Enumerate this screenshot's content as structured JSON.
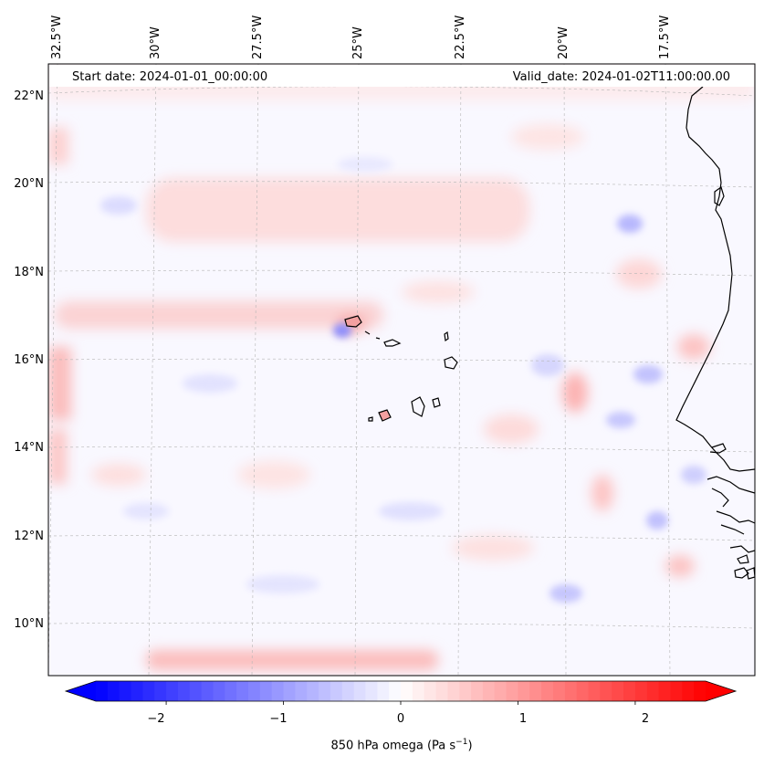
{
  "map": {
    "start_date_label": "Start date: 2024-01-01_00:00:00",
    "valid_date_label": "Valid_date: 2024-01-02T11:00:00.00",
    "lon_labels": [
      "32.5°W",
      "30°W",
      "27.5°W",
      "25°W",
      "22.5°W",
      "20°W",
      "17.5°W"
    ],
    "lat_labels": [
      "22°N",
      "20°N",
      "18°N",
      "16°N",
      "14°N",
      "12°N",
      "10°N"
    ],
    "variable": "850 hPa omega",
    "colormap": "bwr",
    "land_outline": [
      "Cabo Verde islands",
      "West African coastline"
    ]
  },
  "colorbar": {
    "label_main": "850 hPa omega (Pa s",
    "label_exp": "−1",
    "label_end": ")",
    "ticks": [
      "−2",
      "−1",
      "0",
      "1",
      "2"
    ],
    "tick_values": [
      -2,
      -1,
      0,
      1,
      2
    ],
    "min": -2.6,
    "max": 2.6,
    "extend": "both",
    "low_color": "#0000ff",
    "mid_color": "#ffffff",
    "high_color": "#ff0000"
  }
}
